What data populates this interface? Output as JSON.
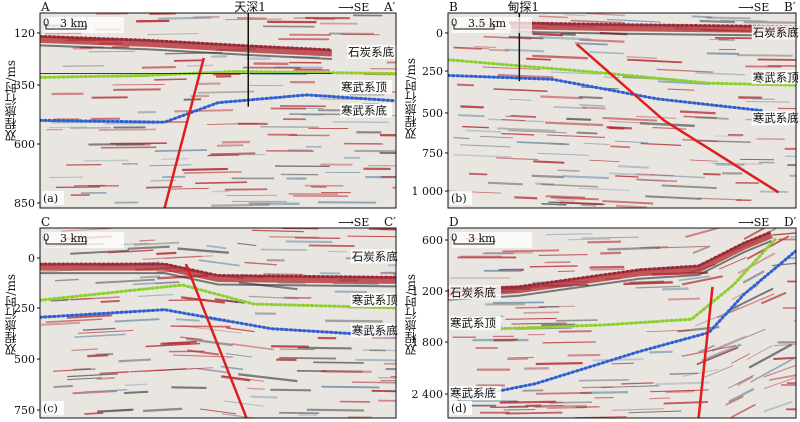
{
  "ylabel": "双程旅行时/ms",
  "panels": [
    {
      "id": "a",
      "tag": "(a)",
      "left": "A",
      "right": "A′",
      "direction": "⟶SE",
      "scale": "3 km",
      "well": "天深1",
      "ticks": [
        "120",
        "350",
        "600",
        "850"
      ],
      "horizons": {
        "carboniferous": "石炭系底",
        "cambrian_top": "寒武系顶",
        "cambrian_base": "寒武系底"
      }
    },
    {
      "id": "b",
      "tag": "(b)",
      "left": "B",
      "right": "B′",
      "direction": "⟶SE",
      "scale": "3.5 km",
      "well": "甸探1",
      "ticks": [
        "0",
        "250",
        "500",
        "750",
        "1 000"
      ],
      "horizons": {
        "carboniferous": "石炭系底",
        "cambrian_top": "寒武系顶",
        "cambrian_base": "寒武系底"
      }
    },
    {
      "id": "c",
      "tag": "(c)",
      "left": "C",
      "right": "C′",
      "direction": "⟶SE",
      "scale": "3 km",
      "ticks": [
        "0",
        "250",
        "500",
        "750"
      ],
      "horizons": {
        "carboniferous": "石炭系底",
        "cambrian_top": "寒武系顶",
        "cambrian_base": "寒武系底"
      }
    },
    {
      "id": "d",
      "tag": "(d)",
      "left": "D",
      "right": "D′",
      "direction": "⟶SE",
      "scale": "3 km",
      "ticks": [
        "600",
        "1 200",
        "1 800",
        "2 400"
      ],
      "horizons": {
        "carboniferous": "石炭系底",
        "cambrian_top": "寒武系顶",
        "cambrian_base": "寒武系底"
      }
    }
  ],
  "colors": {
    "fault": "#e01d1d",
    "carboniferous": "#9a2a3a",
    "cambrian_top": "#8ccf2e",
    "cambrian_base": "#2f5fd0",
    "reflector": "#b3262b"
  }
}
